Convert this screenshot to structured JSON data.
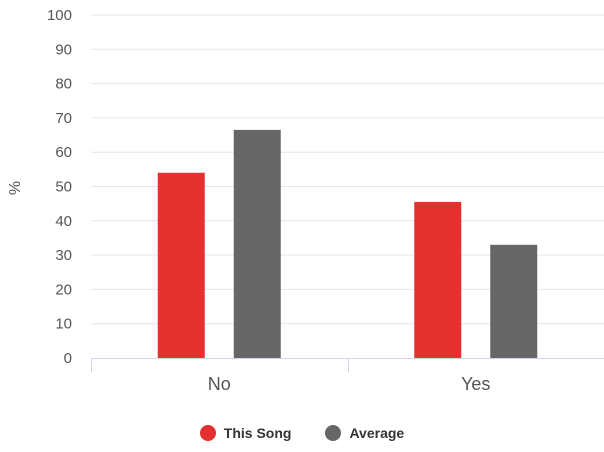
{
  "chart_data": {
    "type": "bar",
    "categories": [
      "No",
      "Yes"
    ],
    "series": [
      {
        "name": "This Song",
        "color": "#e53030",
        "values": [
          54,
          45.5
        ]
      },
      {
        "name": "Average",
        "color": "#666666",
        "values": [
          66.5,
          33
        ]
      }
    ],
    "xlabel": "",
    "ylabel": "%",
    "ylim": [
      0,
      100
    ],
    "yticks": [
      0,
      10,
      20,
      30,
      40,
      50,
      60,
      70,
      80,
      90,
      100
    ],
    "grid": true,
    "legend_position": "bottom-center"
  }
}
